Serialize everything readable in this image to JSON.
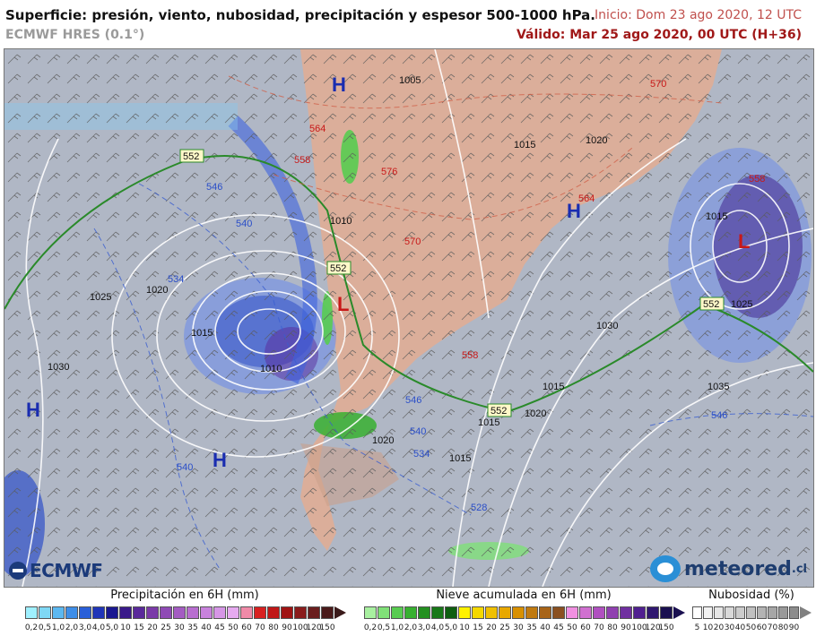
{
  "header": {
    "title": "Superficie: presión, viento, nubosidad, precipitación y espesor 500-1000 hPa.",
    "model": "ECMWF HRES (0.1°)",
    "init": "Inicio: Dom 23 ago 2020, 12 UTC",
    "valid": "Válido: Mar 25 ago 2020, 00 UTC (H+36)"
  },
  "map": {
    "pressure_centers": [
      "H",
      "H",
      "H",
      "H",
      "L",
      "L"
    ],
    "isobar_labels": [
      "1005",
      "1010",
      "1010",
      "1015",
      "1015",
      "1015",
      "1015",
      "1020",
      "1020",
      "1020",
      "1020",
      "1025",
      "1025",
      "1030",
      "1030",
      "1035",
      "1015",
      "1015"
    ],
    "thickness_labels_red": [
      "558",
      "564",
      "570",
      "576",
      "570",
      "558",
      "558",
      "564"
    ],
    "thickness_labels_blue": [
      "546",
      "540",
      "534",
      "546",
      "540",
      "534",
      "528",
      "546",
      "540"
    ],
    "boxed_labels": [
      "552",
      "552",
      "552",
      "552"
    ]
  },
  "legend": {
    "precip": {
      "title": "Precipitación en 6H (mm)",
      "labels": [
        "0,2",
        "0,5",
        "1,0",
        "2,0",
        "3,0",
        "4,0",
        "5,0",
        "10",
        "15",
        "20",
        "25",
        "30",
        "35",
        "40",
        "45",
        "50",
        "60",
        "70",
        "80",
        "90",
        "100",
        "120",
        "150"
      ],
      "colors": [
        "#9ff0ff",
        "#7fd8f5",
        "#5cb8f0",
        "#3e8ee8",
        "#2a5fd8",
        "#2035b8",
        "#1a1890",
        "#3a1a8a",
        "#5a2a9a",
        "#7a3aa8",
        "#8f4ab5",
        "#a45cc2",
        "#b86ed0",
        "#c882dc",
        "#d696e6",
        "#e6aaf0",
        "#f08aa8",
        "#d82020",
        "#c01818",
        "#a01414",
        "#8a1c1c",
        "#6a1e1e",
        "#4a1a1a"
      ],
      "end_color": "#3a1a1a"
    },
    "snow": {
      "title": "Nieve acumulada en 6H (mm)",
      "labels": [
        "0,2",
        "0,5",
        "1,0",
        "2,0",
        "3,0",
        "4,0",
        "5,0",
        "10",
        "15",
        "20",
        "25",
        "30",
        "35",
        "40",
        "45",
        "50",
        "60",
        "70",
        "80",
        "90",
        "100",
        "120",
        "150"
      ],
      "colors": [
        "#a8f0a0",
        "#80e078",
        "#58cc50",
        "#38b030",
        "#249020",
        "#187818",
        "#0e5e10",
        "#fff200",
        "#f5d800",
        "#f0c000",
        "#e8a800",
        "#d89000",
        "#c07a10",
        "#a86418",
        "#8a5020",
        "#f090e0",
        "#d070d0",
        "#b050c0",
        "#9040b0",
        "#7030a0",
        "#502090",
        "#301870",
        "#1a1050"
      ],
      "end_color": "#1a1050"
    },
    "cloud": {
      "title": "Nubosidad (%)",
      "labels": [
        "5",
        "10",
        "20",
        "30",
        "40",
        "50",
        "60",
        "70",
        "80",
        "90"
      ],
      "colors": [
        "#ffffff",
        "#f2f2f2",
        "#e6e6e6",
        "#d9d9d9",
        "#cccccc",
        "#c0c0c0",
        "#b3b3b3",
        "#a6a6a6",
        "#999999",
        "#8c8c8c"
      ],
      "end_color": "#808080"
    }
  },
  "logos": {
    "ecmwf": "ECMWF",
    "meteored": "meteored",
    "meteored_domain": ".cl"
  }
}
